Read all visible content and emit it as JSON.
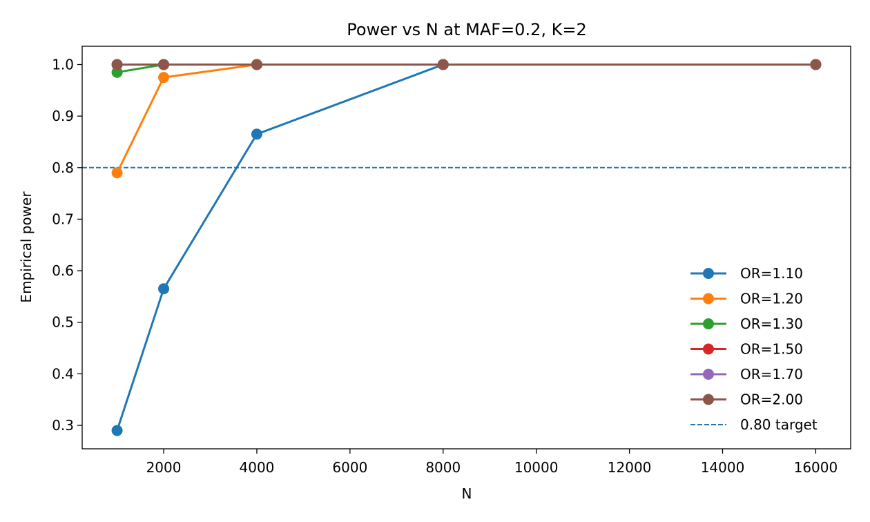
{
  "chart_data": {
    "type": "line",
    "title": "Power vs N at MAF=0.2, K=2",
    "xlabel": "N",
    "ylabel": "Empirical power",
    "x": [
      1000,
      2000,
      4000,
      8000,
      16000
    ],
    "xlim": [
      250,
      16750
    ],
    "ylim": [
      0.2545,
      1.0355
    ],
    "xticks": [
      2000,
      4000,
      6000,
      8000,
      10000,
      12000,
      14000,
      16000
    ],
    "yticks": [
      0.3,
      0.4,
      0.5,
      0.6,
      0.7,
      0.8,
      0.9,
      1.0
    ],
    "grid": false,
    "legend_position": "lower right",
    "series": [
      {
        "name": "OR=1.10",
        "color": "#1f77b4",
        "values": [
          0.29,
          0.565,
          0.865,
          1.0,
          1.0
        ]
      },
      {
        "name": "OR=1.20",
        "color": "#ff7f0e",
        "values": [
          0.79,
          0.975,
          1.0,
          1.0,
          1.0
        ]
      },
      {
        "name": "OR=1.30",
        "color": "#2ca02c",
        "values": [
          0.985,
          1.0,
          1.0,
          1.0,
          1.0
        ]
      },
      {
        "name": "OR=1.50",
        "color": "#d62728",
        "values": [
          1.0,
          1.0,
          1.0,
          1.0,
          1.0
        ]
      },
      {
        "name": "OR=1.70",
        "color": "#9467bd",
        "values": [
          1.0,
          1.0,
          1.0,
          1.0,
          1.0
        ]
      },
      {
        "name": "OR=2.00",
        "color": "#8c564b",
        "values": [
          1.0,
          1.0,
          1.0,
          1.0,
          1.0
        ]
      }
    ],
    "reference_line": {
      "name": "0.80 target",
      "y": 0.8,
      "color": "#1f77b4",
      "style": "dashed"
    }
  }
}
